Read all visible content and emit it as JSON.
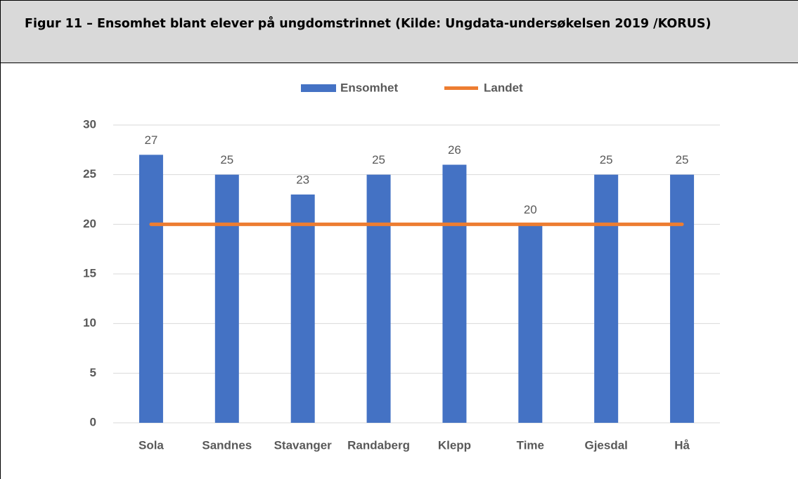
{
  "chart_data": {
    "type": "bar",
    "title": "Figur 11 – Ensomhet blant elever på ungdomstrinnet (Kilde: Ungdata-undersøkelsen 2019 /KORUS)",
    "categories": [
      "Sola",
      "Sandnes",
      "Stavanger",
      "Randaberg",
      "Klepp",
      "Time",
      "Gjesdal",
      "Hå"
    ],
    "series": [
      {
        "name": "Ensomhet",
        "type": "bar",
        "color": "#4472c4",
        "values": [
          27,
          25,
          23,
          25,
          26,
          20,
          25,
          25
        ]
      },
      {
        "name": "Landet",
        "type": "line",
        "color": "#ed7d31",
        "values": [
          20,
          20,
          20,
          20,
          20,
          20,
          20,
          20
        ]
      }
    ],
    "ylim": [
      0,
      30
    ],
    "yticks": [
      0,
      5,
      10,
      15,
      20,
      25,
      30
    ],
    "grid": true,
    "legend": "top"
  }
}
